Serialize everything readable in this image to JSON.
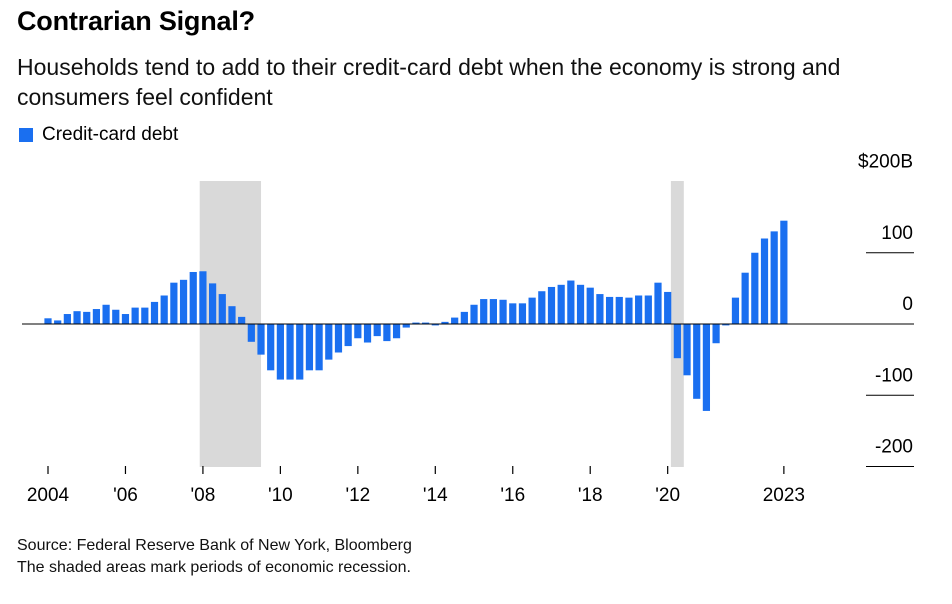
{
  "title": "Contrarian Signal?",
  "subtitle": "Households tend to add to their credit-card debt when the economy is strong and consumers feel confident",
  "colors": {
    "bar": "#1a6ff0",
    "recession": "#d9d9d9",
    "axis": "#000000"
  },
  "footer": {
    "source": "Source: Federal Reserve Bank of New York, Bloomberg",
    "note": "The shaded areas mark periods of economic recession."
  },
  "chart_data": {
    "type": "bar",
    "title": "Contrarian Signal?",
    "legend": {
      "position": "top-left",
      "entries": [
        "Credit-card debt"
      ]
    },
    "series": [
      {
        "name": "Credit-card debt",
        "x": [
          2004.0,
          2004.25,
          2004.5,
          2004.75,
          2005.0,
          2005.25,
          2005.5,
          2005.75,
          2006.0,
          2006.25,
          2006.5,
          2006.75,
          2007.0,
          2007.25,
          2007.5,
          2007.75,
          2008.0,
          2008.25,
          2008.5,
          2008.75,
          2009.0,
          2009.25,
          2009.5,
          2009.75,
          2010.0,
          2010.25,
          2010.5,
          2010.75,
          2011.0,
          2011.25,
          2011.5,
          2011.75,
          2012.0,
          2012.25,
          2012.5,
          2012.75,
          2013.0,
          2013.25,
          2013.5,
          2013.75,
          2014.0,
          2014.25,
          2014.5,
          2014.75,
          2015.0,
          2015.25,
          2015.5,
          2015.75,
          2016.0,
          2016.25,
          2016.5,
          2016.75,
          2017.0,
          2017.25,
          2017.5,
          2017.75,
          2018.0,
          2018.25,
          2018.5,
          2018.75,
          2019.0,
          2019.25,
          2019.5,
          2019.75,
          2020.0,
          2020.25,
          2020.5,
          2020.75,
          2021.0,
          2021.25,
          2021.5,
          2021.75,
          2022.0,
          2022.25,
          2022.5,
          2022.75,
          2023.0
        ],
        "values": [
          8,
          5,
          14,
          18,
          17,
          21,
          27,
          20,
          14,
          23,
          23,
          31,
          40,
          58,
          62,
          73,
          74,
          57,
          42,
          25,
          10,
          -25,
          -43,
          -65,
          -78,
          -78,
          -78,
          -65,
          -65,
          -50,
          -40,
          -31,
          -20,
          -26,
          -17,
          -24,
          -20,
          -5,
          2,
          2,
          -2,
          3,
          9,
          17,
          27,
          35,
          35,
          34,
          29,
          29,
          37,
          46,
          52,
          55,
          61,
          55,
          51,
          42,
          38,
          38,
          37,
          40,
          40,
          58,
          45,
          -48,
          -72,
          -105,
          -122,
          -27,
          -2,
          37,
          72,
          100,
          120,
          130,
          145
        ]
      }
    ],
    "recessions": [
      {
        "start": 2007.917,
        "end": 2009.5
      },
      {
        "start": 2020.083,
        "end": 2020.417
      }
    ],
    "x_ticks": [
      {
        "value": 2004,
        "label": "2004"
      },
      {
        "value": 2006,
        "label": "'06"
      },
      {
        "value": 2008,
        "label": "'08"
      },
      {
        "value": 2010,
        "label": "'10"
      },
      {
        "value": 2012,
        "label": "'12"
      },
      {
        "value": 2014,
        "label": "'14"
      },
      {
        "value": 2016,
        "label": "'16"
      },
      {
        "value": 2018,
        "label": "'18"
      },
      {
        "value": 2020,
        "label": "'20"
      },
      {
        "value": 2023,
        "label": "2023"
      }
    ],
    "y_ticks": [
      {
        "value": 200,
        "label": "$200B"
      },
      {
        "value": 100,
        "label": "100"
      },
      {
        "value": 0,
        "label": "0"
      },
      {
        "value": -100,
        "label": "-100"
      },
      {
        "value": -200,
        "label": "-200"
      }
    ],
    "xlim": [
      2003.5,
      2023.5
    ],
    "ylim": [
      -200,
      200
    ],
    "xlabel": "",
    "ylabel": ""
  }
}
